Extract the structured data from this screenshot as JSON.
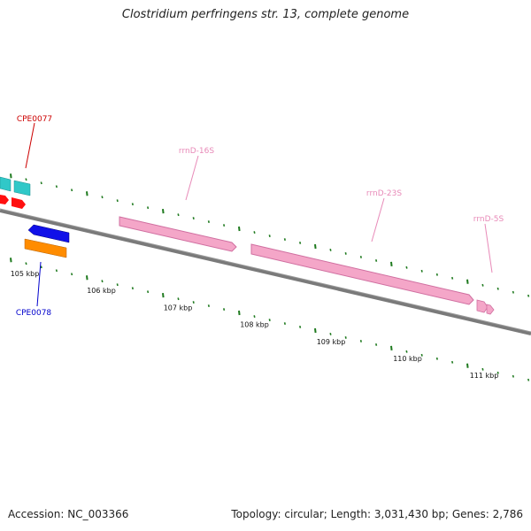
{
  "title": "Clostridium perfringens str. 13, complete genome",
  "footer": {
    "accession": "Accession: NC_003366",
    "summary": "Topology: circular; Length: 3,031,430 bp; Genes: 2,786"
  },
  "colors": {
    "backbone": "#7a7a7a",
    "tick": "#1f7a1f",
    "rrna": "#f4a6c8",
    "rrna_edge": "#d06fa0",
    "cds_cyan": "#30c8c8",
    "cds_red": "#ff1010",
    "cds_blue": "#1010e8",
    "cds_orange": "#ff8c00",
    "label_red": "#cc0000",
    "label_blue": "#0000cc",
    "label_pink": "#e88ab8"
  },
  "scale_labels": [
    "105 kbp",
    "106 kbp",
    "107 kbp",
    "108 kbp",
    "109 kbp",
    "110 kbp",
    "111 kbp"
  ],
  "features": [
    {
      "id": "cpe0077",
      "label": "CPE0077",
      "kind": "cds",
      "color": "label_red"
    },
    {
      "id": "cpe0078",
      "label": "CPE0078",
      "kind": "cds",
      "color": "label_blue"
    },
    {
      "id": "rrnd16s",
      "label": "rrnD-16S",
      "kind": "rRNA",
      "color": "label_pink"
    },
    {
      "id": "rrnd23s",
      "label": "rrnD-23S",
      "kind": "rRNA",
      "color": "label_pink"
    },
    {
      "id": "rrnd5s",
      "label": "rrnD-5S",
      "kind": "rRNA",
      "color": "label_pink"
    }
  ]
}
